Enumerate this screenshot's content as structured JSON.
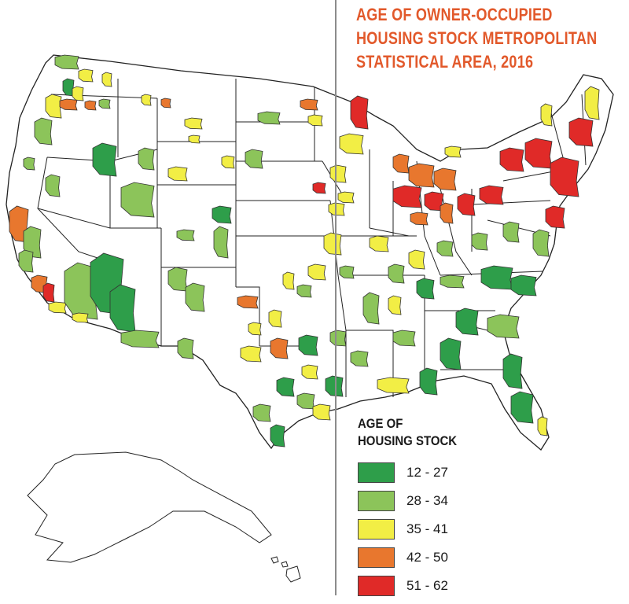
{
  "title": {
    "line1": "AGE OF OWNER-OCCUPIED",
    "line2": "HOUSING STOCK METROPOLITAN",
    "line3": "STATISTICAL AREA, 2016"
  },
  "legend": {
    "title_line1": "AGE OF",
    "title_line2": "HOUSING STOCK",
    "items": [
      {
        "label": "12 - 27",
        "color": "#2e9e4a"
      },
      {
        "label": "28 - 34",
        "color": "#8cc45a"
      },
      {
        "label": "35 - 41",
        "color": "#f2ee45"
      },
      {
        "label": "42 - 50",
        "color": "#e8772e"
      },
      {
        "label": "51 - 62",
        "color": "#e02a28"
      }
    ]
  },
  "colors": {
    "title": "#e2592b",
    "state_border": "#222222",
    "divider": "#8c8c8c"
  }
}
